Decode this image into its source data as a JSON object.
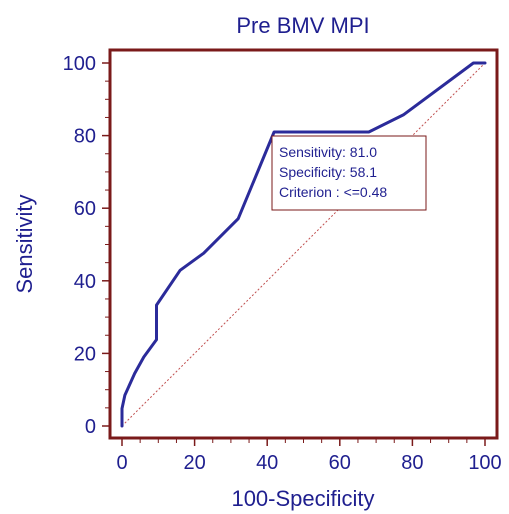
{
  "chart_data": {
    "type": "line",
    "title": "Pre BMV  MPI",
    "xlabel": "100-Specificity",
    "ylabel": "Sensitivity",
    "xlim": [
      0,
      100
    ],
    "ylim": [
      0,
      100
    ],
    "xticks": [
      "0",
      "20",
      "40",
      "60",
      "80",
      "100"
    ],
    "yticks": [
      "0",
      "20",
      "40",
      "60",
      "80",
      "100"
    ],
    "grid": false,
    "series": [
      {
        "values_xy": [
          [
            0,
            0
          ],
          [
            0,
            4.8
          ],
          [
            0.8,
            8.5
          ],
          [
            3.5,
            14.5
          ],
          [
            6,
            19
          ],
          [
            9.5,
            23.8
          ],
          [
            9.5,
            33.3
          ],
          [
            16,
            42.9
          ],
          [
            22.5,
            47.6
          ],
          [
            32,
            57.1
          ],
          [
            41.9,
            81.0
          ],
          [
            68,
            81.0
          ],
          [
            77.5,
            85.7
          ],
          [
            96.8,
            100
          ],
          [
            100,
            100
          ]
        ]
      }
    ],
    "reference_line": [
      [
        0,
        0
      ],
      [
        100,
        100
      ]
    ],
    "annotation_lines": [
      "Sensitivity: 81.0",
      "Specificity: 58.1",
      "Criterion : <=0.48"
    ],
    "colors": {
      "roc": "#2b2b9a",
      "frame": "#7a1a1a",
      "reference": "#c05050",
      "text": "#1f1f8f"
    }
  }
}
